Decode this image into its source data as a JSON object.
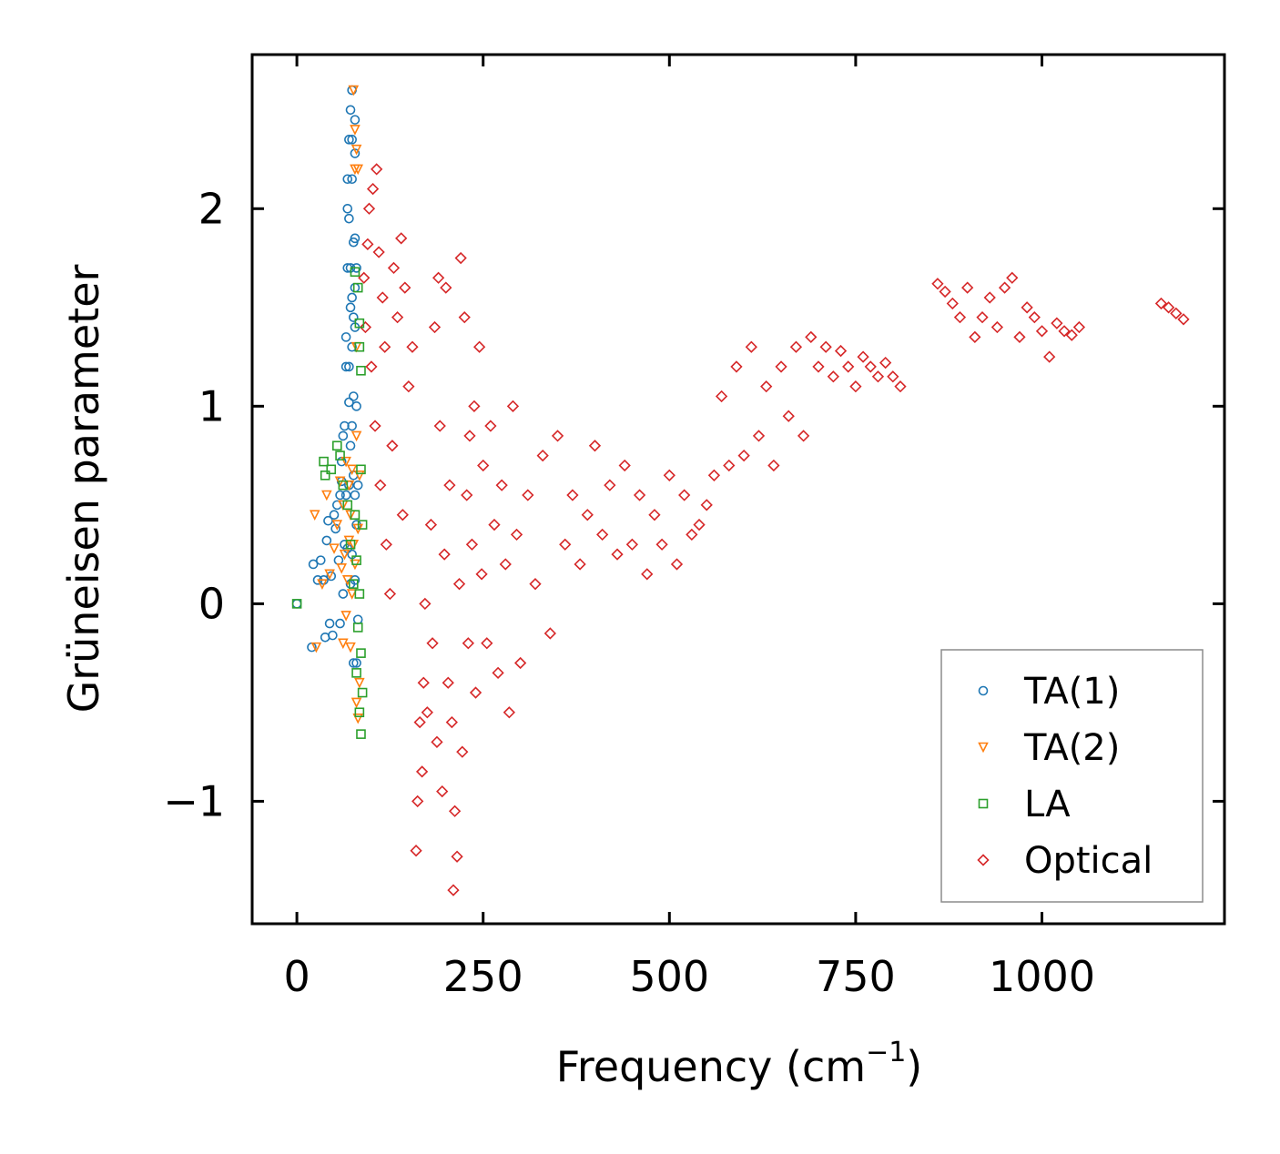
{
  "chart_data": {
    "type": "scatter",
    "title": "",
    "xlabel": "Frequency (cm",
    "xlabel_sup": "−1",
    "xlabel_close": ")",
    "ylabel": "Grüneisen parameter",
    "xlim": [
      -60,
      1245
    ],
    "ylim": [
      -1.62,
      2.78
    ],
    "xticks": [
      0,
      250,
      500,
      750,
      1000
    ],
    "xtick_labels": [
      "0",
      "250",
      "500",
      "750",
      "1000"
    ],
    "yticks": [
      -1,
      0,
      1,
      2
    ],
    "ytick_labels": [
      "−1",
      "0",
      "1",
      "2"
    ],
    "grid": false,
    "legend_position": "bottom-right",
    "series": [
      {
        "name": "TA(1)",
        "marker": "circle",
        "color": "#1f77b4",
        "points": [
          [
            0,
            0
          ],
          [
            20,
            -0.22
          ],
          [
            22,
            0.2
          ],
          [
            28,
            0.12
          ],
          [
            32,
            0.22
          ],
          [
            36,
            0.12
          ],
          [
            38,
            -0.17
          ],
          [
            40,
            0.32
          ],
          [
            42,
            0.42
          ],
          [
            44,
            -0.1
          ],
          [
            46,
            0.14
          ],
          [
            48,
            -0.16
          ],
          [
            50,
            0.45
          ],
          [
            52,
            0.38
          ],
          [
            54,
            0.5
          ],
          [
            56,
            0.22
          ],
          [
            58,
            0.55
          ],
          [
            58,
            -0.1
          ],
          [
            60,
            0.62
          ],
          [
            60,
            0.72
          ],
          [
            62,
            0.85
          ],
          [
            62,
            0.05
          ],
          [
            64,
            0.3
          ],
          [
            64,
            0.9
          ],
          [
            66,
            1.2
          ],
          [
            66,
            1.35
          ],
          [
            66,
            0.55
          ],
          [
            68,
            1.7
          ],
          [
            68,
            2.0
          ],
          [
            68,
            2.15
          ],
          [
            68,
            0.28
          ],
          [
            70,
            1.95
          ],
          [
            70,
            2.35
          ],
          [
            70,
            1.2
          ],
          [
            70,
            1.02
          ],
          [
            70,
            0.6
          ],
          [
            72,
            2.5
          ],
          [
            72,
            1.7
          ],
          [
            72,
            1.5
          ],
          [
            72,
            0.8
          ],
          [
            72,
            0.1
          ],
          [
            74,
            2.6
          ],
          [
            74,
            2.35
          ],
          [
            74,
            2.15
          ],
          [
            74,
            1.55
          ],
          [
            74,
            1.3
          ],
          [
            74,
            0.9
          ],
          [
            74,
            0.25
          ],
          [
            76,
            1.83
          ],
          [
            76,
            1.45
          ],
          [
            76,
            1.05
          ],
          [
            76,
            0.65
          ],
          [
            76,
            -0.3
          ],
          [
            78,
            2.45
          ],
          [
            78,
            2.28
          ],
          [
            78,
            1.85
          ],
          [
            78,
            1.6
          ],
          [
            78,
            1.4
          ],
          [
            78,
            0.55
          ],
          [
            78,
            0.12
          ],
          [
            80,
            1.7
          ],
          [
            80,
            1.0
          ],
          [
            80,
            0.4
          ],
          [
            80,
            -0.3
          ],
          [
            82,
            0.6
          ],
          [
            82,
            -0.08
          ]
        ]
      },
      {
        "name": "TA(2)",
        "marker": "triangle",
        "color": "#ff7f0e",
        "points": [
          [
            24,
            0.45
          ],
          [
            26,
            -0.22
          ],
          [
            34,
            0.1
          ],
          [
            40,
            0.55
          ],
          [
            44,
            0.15
          ],
          [
            50,
            0.28
          ],
          [
            54,
            0.4
          ],
          [
            58,
            0.62
          ],
          [
            60,
            0.18
          ],
          [
            62,
            0.5
          ],
          [
            62,
            -0.2
          ],
          [
            64,
            0.25
          ],
          [
            66,
            0.72
          ],
          [
            66,
            -0.06
          ],
          [
            68,
            0.12
          ],
          [
            70,
            0.6
          ],
          [
            70,
            0.32
          ],
          [
            72,
            -0.22
          ],
          [
            72,
            0.45
          ],
          [
            74,
            0.05
          ],
          [
            74,
            0.68
          ],
          [
            76,
            2.6
          ],
          [
            76,
            0.3
          ],
          [
            78,
            2.4
          ],
          [
            78,
            2.2
          ],
          [
            78,
            0.2
          ],
          [
            80,
            2.3
          ],
          [
            80,
            1.3
          ],
          [
            80,
            0.85
          ],
          [
            80,
            -0.5
          ],
          [
            82,
            2.2
          ],
          [
            82,
            0.38
          ],
          [
            82,
            -0.58
          ],
          [
            84,
            0.65
          ],
          [
            84,
            -0.4
          ]
        ]
      },
      {
        "name": "LA",
        "marker": "square",
        "color": "#2ca02c",
        "points": [
          [
            0,
            0
          ],
          [
            36,
            0.72
          ],
          [
            38,
            0.65
          ],
          [
            46,
            0.68
          ],
          [
            54,
            0.8
          ],
          [
            58,
            0.75
          ],
          [
            62,
            0.6
          ],
          [
            68,
            0.5
          ],
          [
            72,
            0.3
          ],
          [
            76,
            0.1
          ],
          [
            78,
            1.68
          ],
          [
            78,
            0.45
          ],
          [
            80,
            0.22
          ],
          [
            80,
            -0.35
          ],
          [
            82,
            1.6
          ],
          [
            82,
            -0.12
          ],
          [
            84,
            1.42
          ],
          [
            84,
            1.3
          ],
          [
            84,
            0.05
          ],
          [
            84,
            -0.55
          ],
          [
            86,
            1.18
          ],
          [
            86,
            0.68
          ],
          [
            86,
            -0.25
          ],
          [
            86,
            -0.66
          ],
          [
            88,
            0.4
          ],
          [
            88,
            -0.45
          ]
        ]
      },
      {
        "name": "Optical",
        "marker": "diamond",
        "color": "#d62728",
        "points": [
          [
            90,
            1.65
          ],
          [
            92,
            1.4
          ],
          [
            95,
            1.82
          ],
          [
            97,
            2.0
          ],
          [
            100,
            1.2
          ],
          [
            102,
            2.1
          ],
          [
            105,
            0.9
          ],
          [
            107,
            2.2
          ],
          [
            110,
            1.78
          ],
          [
            112,
            0.6
          ],
          [
            115,
            1.55
          ],
          [
            118,
            1.3
          ],
          [
            120,
            0.3
          ],
          [
            125,
            0.05
          ],
          [
            128,
            0.8
          ],
          [
            130,
            1.7
          ],
          [
            135,
            1.45
          ],
          [
            140,
            1.85
          ],
          [
            142,
            0.45
          ],
          [
            145,
            1.6
          ],
          [
            150,
            1.1
          ],
          [
            155,
            1.3
          ],
          [
            160,
            -1.25
          ],
          [
            162,
            -1.0
          ],
          [
            165,
            -0.6
          ],
          [
            168,
            -0.85
          ],
          [
            170,
            -0.4
          ],
          [
            172,
            0.0
          ],
          [
            175,
            -0.55
          ],
          [
            180,
            0.4
          ],
          [
            182,
            -0.2
          ],
          [
            185,
            1.4
          ],
          [
            188,
            -0.7
          ],
          [
            190,
            1.65
          ],
          [
            192,
            0.9
          ],
          [
            195,
            -0.95
          ],
          [
            198,
            0.25
          ],
          [
            200,
            1.6
          ],
          [
            203,
            -0.4
          ],
          [
            205,
            0.6
          ],
          [
            208,
            -0.6
          ],
          [
            210,
            -1.45
          ],
          [
            212,
            -1.05
          ],
          [
            215,
            -1.28
          ],
          [
            218,
            0.1
          ],
          [
            220,
            1.75
          ],
          [
            222,
            -0.75
          ],
          [
            225,
            1.45
          ],
          [
            228,
            0.55
          ],
          [
            230,
            -0.2
          ],
          [
            232,
            0.85
          ],
          [
            235,
            0.3
          ],
          [
            238,
            1.0
          ],
          [
            240,
            -0.45
          ],
          [
            245,
            1.3
          ],
          [
            248,
            0.15
          ],
          [
            250,
            0.7
          ],
          [
            255,
            -0.2
          ],
          [
            260,
            0.9
          ],
          [
            265,
            0.4
          ],
          [
            270,
            -0.35
          ],
          [
            275,
            0.6
          ],
          [
            280,
            0.2
          ],
          [
            285,
            -0.55
          ],
          [
            290,
            1.0
          ],
          [
            295,
            0.35
          ],
          [
            300,
            -0.3
          ],
          [
            310,
            0.55
          ],
          [
            320,
            0.1
          ],
          [
            330,
            0.75
          ],
          [
            340,
            -0.15
          ],
          [
            350,
            0.85
          ],
          [
            360,
            0.3
          ],
          [
            370,
            0.55
          ],
          [
            380,
            0.2
          ],
          [
            390,
            0.45
          ],
          [
            400,
            0.8
          ],
          [
            410,
            0.35
          ],
          [
            420,
            0.6
          ],
          [
            430,
            0.25
          ],
          [
            440,
            0.7
          ],
          [
            450,
            0.3
          ],
          [
            460,
            0.55
          ],
          [
            470,
            0.15
          ],
          [
            480,
            0.45
          ],
          [
            490,
            0.3
          ],
          [
            500,
            0.65
          ],
          [
            510,
            0.2
          ],
          [
            520,
            0.55
          ],
          [
            530,
            0.35
          ],
          [
            540,
            0.4
          ],
          [
            550,
            0.5
          ],
          [
            560,
            0.65
          ],
          [
            570,
            1.05
          ],
          [
            580,
            0.7
          ],
          [
            590,
            1.2
          ],
          [
            600,
            0.75
          ],
          [
            610,
            1.3
          ],
          [
            620,
            0.85
          ],
          [
            630,
            1.1
          ],
          [
            640,
            0.7
          ],
          [
            650,
            1.2
          ],
          [
            660,
            0.95
          ],
          [
            670,
            1.3
          ],
          [
            680,
            0.85
          ],
          [
            690,
            1.35
          ],
          [
            700,
            1.2
          ],
          [
            710,
            1.3
          ],
          [
            720,
            1.15
          ],
          [
            730,
            1.28
          ],
          [
            740,
            1.2
          ],
          [
            750,
            1.1
          ],
          [
            760,
            1.25
          ],
          [
            770,
            1.2
          ],
          [
            780,
            1.15
          ],
          [
            790,
            1.22
          ],
          [
            800,
            1.15
          ],
          [
            810,
            1.1
          ],
          [
            860,
            1.62
          ],
          [
            870,
            1.58
          ],
          [
            880,
            1.52
          ],
          [
            890,
            1.45
          ],
          [
            900,
            1.6
          ],
          [
            910,
            1.35
          ],
          [
            920,
            1.45
          ],
          [
            930,
            1.55
          ],
          [
            940,
            1.4
          ],
          [
            950,
            1.6
          ],
          [
            960,
            1.65
          ],
          [
            970,
            1.35
          ],
          [
            980,
            1.5
          ],
          [
            990,
            1.45
          ],
          [
            1000,
            1.38
          ],
          [
            1010,
            1.25
          ],
          [
            1020,
            1.42
          ],
          [
            1030,
            1.38
          ],
          [
            1040,
            1.36
          ],
          [
            1050,
            1.4
          ],
          [
            1160,
            1.52
          ],
          [
            1170,
            1.5
          ],
          [
            1180,
            1.47
          ],
          [
            1190,
            1.44
          ]
        ]
      }
    ]
  }
}
